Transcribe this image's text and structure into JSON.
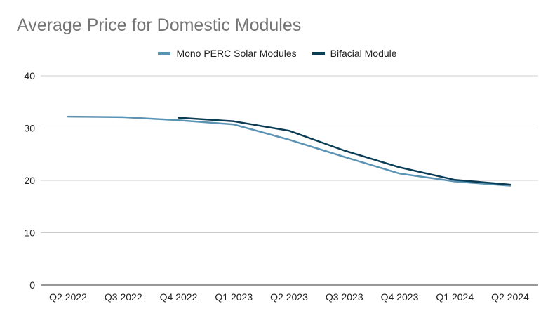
{
  "chart_data": {
    "type": "line",
    "title": "Average Price for Domestic Modules",
    "xlabel": "",
    "ylabel": "",
    "categories": [
      "Q2 2022",
      "Q3 2022",
      "Q4 2022",
      "Q1 2023",
      "Q2 2023",
      "Q3 2023",
      "Q4 2023",
      "Q1 2024",
      "Q2 2024"
    ],
    "ylim": [
      0,
      40
    ],
    "yticks": [
      0,
      10,
      20,
      30,
      40
    ],
    "grid": true,
    "legend": "top-center",
    "series": [
      {
        "name": "Mono PERC Solar Modules",
        "color": "#5b93b4",
        "values": [
          32.2,
          32.1,
          31.5,
          30.7,
          27.8,
          24.5,
          21.3,
          19.8,
          19.0
        ]
      },
      {
        "name": "Bifacial Module",
        "color": "#0b3c55",
        "values": [
          null,
          null,
          32.0,
          31.3,
          29.5,
          25.7,
          22.5,
          20.1,
          19.2
        ]
      }
    ]
  }
}
